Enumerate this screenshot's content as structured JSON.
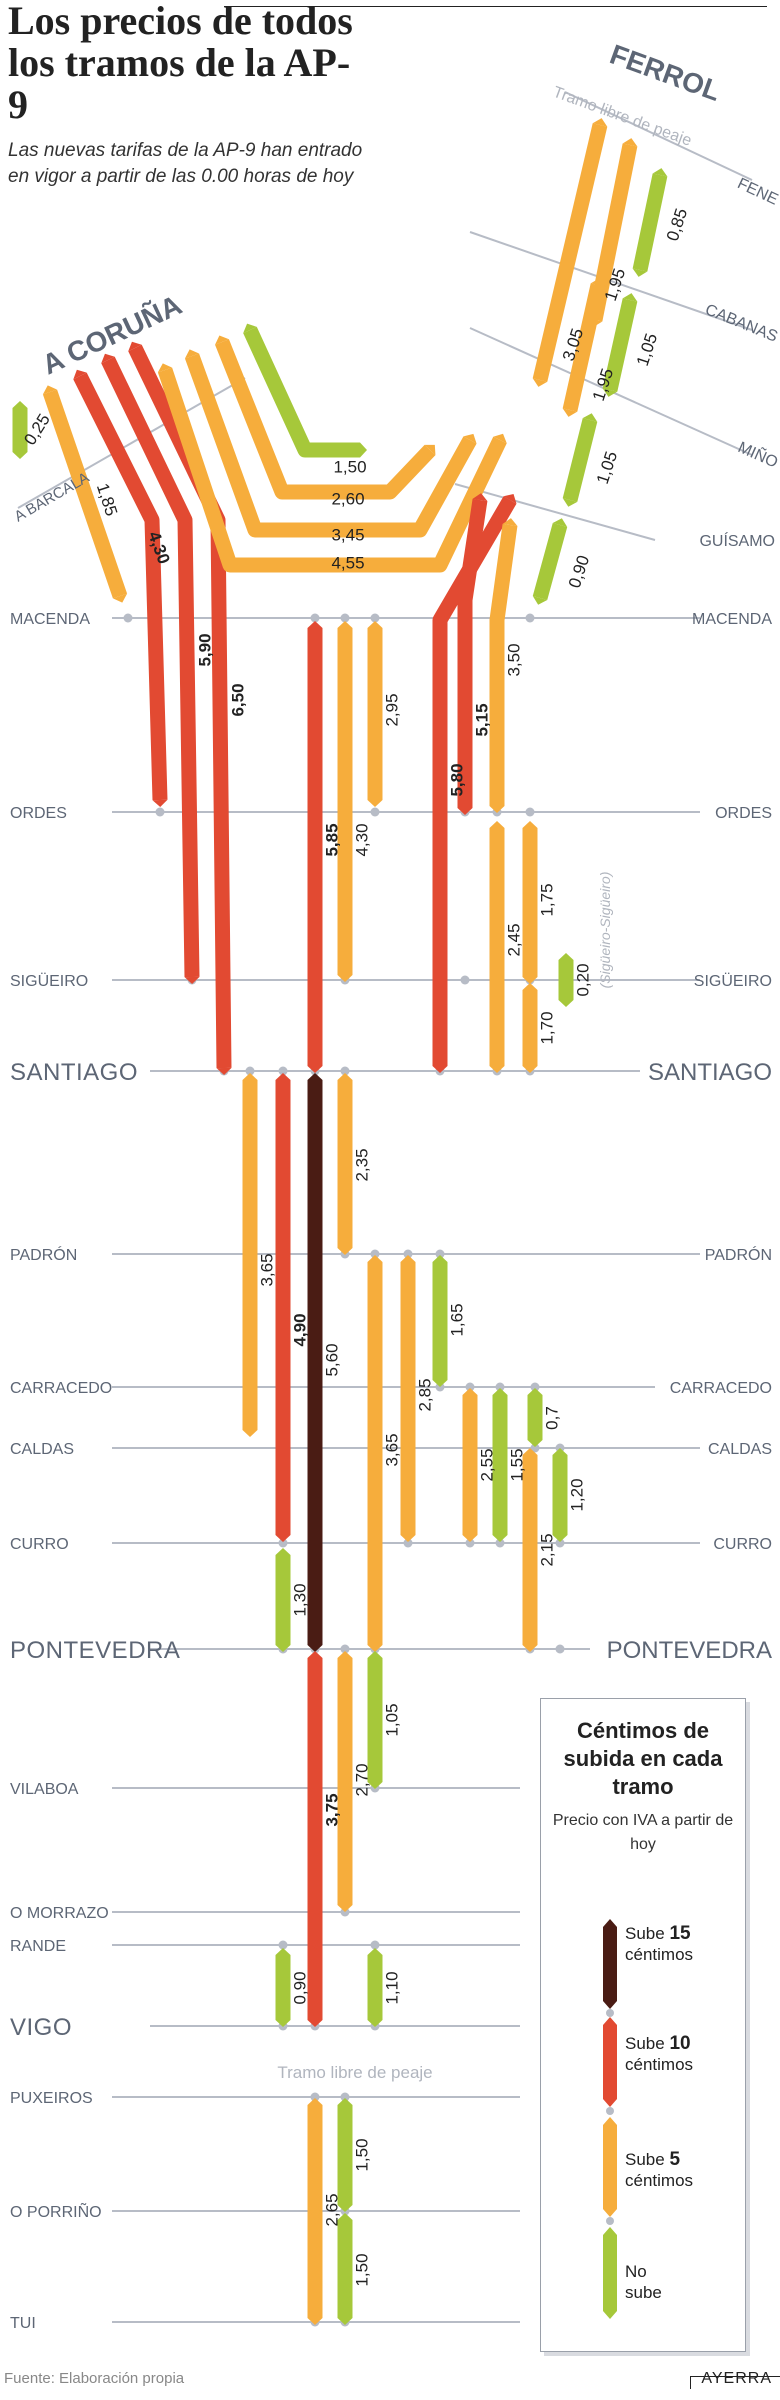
{
  "header": {
    "title": "Los precios de todos los tramos de la AP-9",
    "subtitle": "Las nuevas tarifas de la AP-9 han entrado en vigor a partir de las 0.00 horas de hoy"
  },
  "footer": {
    "source": "Fuente: Elaboración propia",
    "author": "AYERRA"
  },
  "colors": {
    "sube15": "#4a1c14",
    "sube10": "#e24a32",
    "sube5": "#f6ad3c",
    "no_sube": "#a6c83a",
    "line": "#b7bcc6",
    "text": "#5d6675"
  },
  "branches": {
    "left": "A CORUÑA",
    "right": "FERROL"
  },
  "toll_free_notes": {
    "ferrol": "Tramo libre de peaje",
    "vigo": "Tramo libre de peaje"
  },
  "branch_stations": {
    "a_barcala": "A BARCALA",
    "fene": "FENE",
    "cabanas": "CABANAS",
    "mino": "MIÑO",
    "guisamo": "GUÍSAMO"
  },
  "stations": {
    "macenda": "MACENDA",
    "ordes": "ORDES",
    "sigueiro": "SIGÜEIRO",
    "santiago": "SANTIAGO",
    "padron": "PADRÓN",
    "carracedo": "CARRACEDO",
    "caldas": "CALDAS",
    "curro": "CURRO",
    "pontevedra": "PONTEVEDRA",
    "vilaboa": "VILABOA",
    "o_morrazo": "O MORRAZO",
    "rande": "RANDE",
    "vigo": "VIGO",
    "puxeiros": "PUXEIROS",
    "o_porrino": "O PORRIÑO",
    "tui": "TUI"
  },
  "sigueiro_note": {
    "value": "0,20",
    "label": "(Sigüeiro-Sigüeiro)"
  },
  "legend": {
    "title": "Céntimos de subida en cada tramo",
    "subtitle": "Precio con IVA a partir de hoy",
    "items": [
      {
        "pre": "Sube",
        "value": "15",
        "post": "céntimos",
        "color": "#4a1c14"
      },
      {
        "pre": "Sube",
        "value": "10",
        "post": "céntimos",
        "color": "#e24a32"
      },
      {
        "pre": "Sube",
        "value": "5",
        "post": "céntimos",
        "color": "#f6ad3c"
      },
      {
        "pre": "No",
        "value": "",
        "post": "sube",
        "color": "#a6c83a"
      }
    ]
  },
  "tramos": [
    {
      "price": "0,25",
      "increase": 0
    },
    {
      "price": "1,85",
      "increase": 5
    },
    {
      "price": "4,30",
      "increase": 10
    },
    {
      "price": "5,90",
      "increase": 10
    },
    {
      "price": "6,50",
      "increase": 10
    },
    {
      "price": "1,50",
      "increase": 0
    },
    {
      "price": "2,60",
      "increase": 5
    },
    {
      "price": "3,45",
      "increase": 5
    },
    {
      "price": "4,55",
      "increase": 5
    },
    {
      "price": "0,85",
      "increase": 0
    },
    {
      "price": "1,95",
      "increase": 5
    },
    {
      "price": "3,05",
      "increase": 5
    },
    {
      "price": "1,05",
      "increase": 0
    },
    {
      "price": "1,95",
      "increase": 5
    },
    {
      "price": "1,05",
      "increase": 0
    },
    {
      "price": "0,90",
      "increase": 0
    },
    {
      "price": "5,85",
      "increase": 10
    },
    {
      "price": "4,30",
      "increase": 5
    },
    {
      "price": "2,95",
      "increase": 5
    },
    {
      "price": "5,80",
      "increase": 10
    },
    {
      "price": "5,15",
      "increase": 10
    },
    {
      "price": "3,50",
      "increase": 5
    },
    {
      "price": "2,45",
      "increase": 5
    },
    {
      "price": "1,75",
      "increase": 5
    },
    {
      "price": "1,70",
      "increase": 5
    },
    {
      "price": "0,20",
      "increase": 0
    },
    {
      "price": "3,65",
      "increase": 5
    },
    {
      "price": "4,90",
      "increase": 10
    },
    {
      "price": "5,60",
      "increase": 15
    },
    {
      "price": "2,35",
      "increase": 5
    },
    {
      "price": "3,65",
      "increase": 5
    },
    {
      "price": "2,85",
      "increase": 5
    },
    {
      "price": "1,65",
      "increase": 0
    },
    {
      "price": "2,55",
      "increase": 5
    },
    {
      "price": "1,55",
      "increase": 0
    },
    {
      "price": "0,7",
      "increase": 0
    },
    {
      "price": "2,15",
      "increase": 5
    },
    {
      "price": "1,20",
      "increase": 0
    },
    {
      "price": "1,30",
      "increase": 0
    },
    {
      "price": "3,75",
      "increase": 10
    },
    {
      "price": "2,70",
      "increase": 5
    },
    {
      "price": "1,05",
      "increase": 0
    },
    {
      "price": "1,10",
      "increase": 0
    },
    {
      "price": "0,90",
      "increase": 0
    },
    {
      "price": "2,65",
      "increase": 5
    },
    {
      "price": "1,50",
      "increase": 0
    },
    {
      "price": "1,50",
      "increase": 0
    }
  ]
}
